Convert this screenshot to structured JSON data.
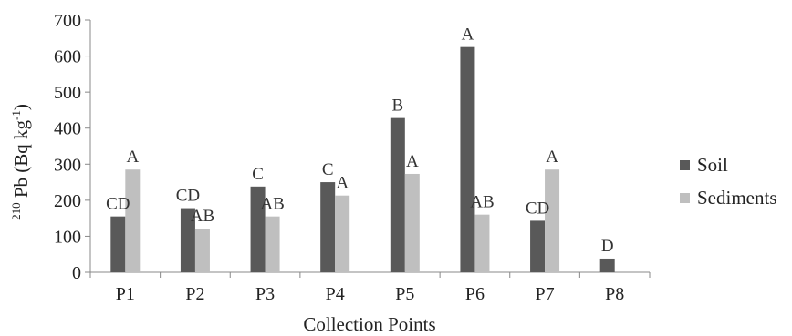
{
  "chart_data": {
    "type": "bar",
    "xlabel": "Collection Points",
    "ylabel_sup": "210",
    "ylabel_main": " Pb (Bq kg",
    "ylabel_sup2": "-1",
    "ylabel_end": ")",
    "ylim": [
      0,
      700
    ],
    "yticks": [
      0,
      100,
      200,
      300,
      400,
      500,
      600,
      700
    ],
    "categories": [
      "P1",
      "P2",
      "P3",
      "P4",
      "P5",
      "P6",
      "P7",
      "P8"
    ],
    "series": [
      {
        "name": "Soil",
        "color": "#595959",
        "values": [
          155,
          178,
          238,
          250,
          428,
          625,
          143,
          38
        ],
        "labels": [
          "CD",
          "CD",
          "C",
          "C",
          "B",
          "A",
          "CD",
          "D"
        ]
      },
      {
        "name": "Sediments",
        "color": "#bfbfbf",
        "values": [
          285,
          121,
          155,
          213,
          273,
          160,
          285,
          null
        ],
        "labels": [
          "A",
          "AB",
          "AB",
          "A",
          "A",
          "AB",
          "A",
          null
        ]
      }
    ],
    "legend_position": "right",
    "grid": false
  }
}
